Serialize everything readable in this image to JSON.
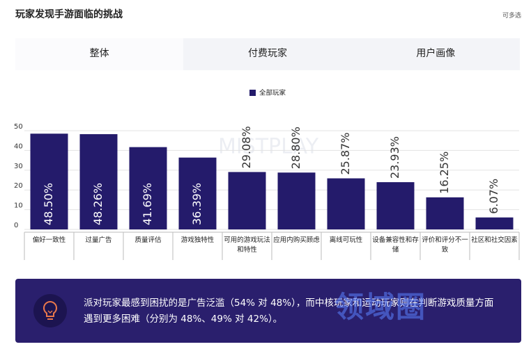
{
  "header": {
    "title": "玩家发现手游面临的挑战",
    "note": "可多选"
  },
  "tabs": [
    "整体",
    "付费玩家",
    "用户画像"
  ],
  "chart_data": {
    "type": "bar",
    "categories": [
      "偏好一致性",
      "过量广告",
      "质量评估",
      "游戏独特性",
      "可用的游戏玩法和特性",
      "应用内购买顾虑",
      "离线可玩性",
      "设备兼容性和存储",
      "评价和评分不一致",
      "社区和社交因素"
    ],
    "series": [
      {
        "name": "全部玩家",
        "color": "#241b6b",
        "values": [
          48.5,
          48.26,
          41.69,
          36.39,
          29.08,
          28.8,
          25.87,
          23.93,
          16.25,
          6.07
        ],
        "value_labels": [
          "48.50%",
          "48.26%",
          "41.69%",
          "36.39%",
          "29.08%",
          "28.80%",
          "25.87%",
          "23.93%",
          "16.25%",
          "6.07%"
        ]
      }
    ],
    "ylim": [
      0,
      50
    ],
    "yticks": [
      0,
      10,
      20,
      30,
      40,
      50
    ],
    "grid": true,
    "legend": "top"
  },
  "callout": {
    "text": "派对玩家最感到困扰的是广告泛滥（54% 对 48%），而中核玩家和运动玩家则在判断游戏质量方面遇到更多困难（分别为 48%、49% 对 42%）。"
  },
  "watermarks": [
    "MISTPLAY",
    "领域圈"
  ]
}
